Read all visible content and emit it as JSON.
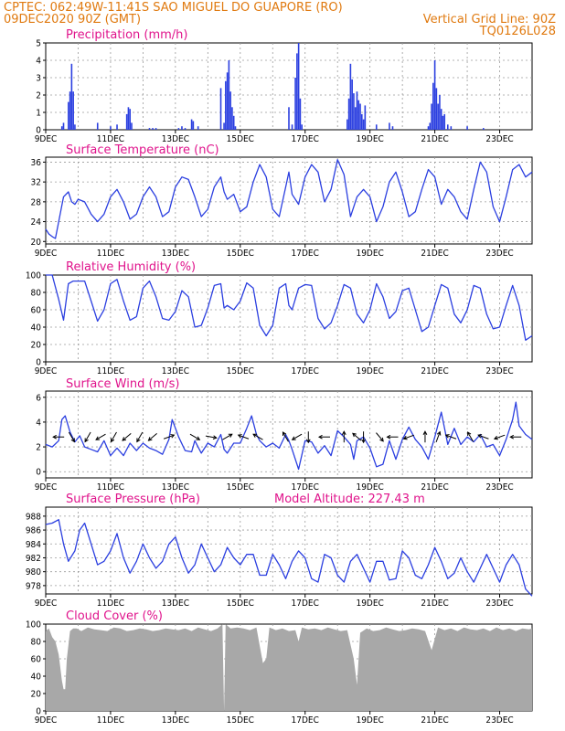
{
  "header": {
    "line1_left": "CPTEC:   062:49W-11:41S   SAO MIGUEL DO GUAPORE (RO)",
    "line2_left": "09DEC2020 90Z (GMT)",
    "line2_right": "Vertical Grid Line: 90Z",
    "line3_right": "TQ0126L028"
  },
  "colors": {
    "header": "#e07a10",
    "panel_title": "#e0148c",
    "series_line": "#2b3fe0",
    "precip_bar": "#2b3fe0",
    "cloud_fill": "#a8a8a8",
    "wind_arrow": "#000000",
    "grid": "#9a9a9a"
  },
  "chart_data": [
    {
      "id": "precip",
      "type": "bar",
      "title": "Precipitation (mm/h)",
      "xlabels": [
        "9DEC",
        "11DEC",
        "13DEC",
        "15DEC",
        "17DEC",
        "19DEC",
        "21DEC",
        "23DEC"
      ],
      "yticks": [
        "0",
        "1",
        "2",
        "3",
        "4",
        "5"
      ],
      "ylim": [
        0,
        5
      ],
      "xlim_days": [
        9,
        24
      ],
      "x_day": [
        9.5,
        9.55,
        9.7,
        9.75,
        9.8,
        9.85,
        9.9,
        10.6,
        11.0,
        11.2,
        11.5,
        11.55,
        11.6,
        11.65,
        12.2,
        12.3,
        12.4,
        13.1,
        13.2,
        13.3,
        13.5,
        13.55,
        13.7,
        14.4,
        14.5,
        14.55,
        14.6,
        14.65,
        14.7,
        14.75,
        14.8,
        14.85,
        16.5,
        16.6,
        16.7,
        16.75,
        16.8,
        16.85,
        16.9,
        18.3,
        18.35,
        18.4,
        18.45,
        18.5,
        18.55,
        18.6,
        18.65,
        18.7,
        18.75,
        18.8,
        18.85,
        19.2,
        19.6,
        19.7,
        20.8,
        20.85,
        20.9,
        20.95,
        21.0,
        21.05,
        21.1,
        21.15,
        21.2,
        21.25,
        21.3,
        21.4,
        21.5,
        22.0,
        22.5
      ],
      "values": [
        0.2,
        0.4,
        1.6,
        2.2,
        3.8,
        2.2,
        0.3,
        0.4,
        0.2,
        0.3,
        0.9,
        1.3,
        1.2,
        0.4,
        0.1,
        0.1,
        0.1,
        0.1,
        0.2,
        0.1,
        0.6,
        0.5,
        0.2,
        2.4,
        0.4,
        2.8,
        3.3,
        4.0,
        2.2,
        1.3,
        0.8,
        0.2,
        1.3,
        0.3,
        3.0,
        4.4,
        5.0,
        1.8,
        0.3,
        0.6,
        1.8,
        3.8,
        2.9,
        2.1,
        1.3,
        2.2,
        1.7,
        1.5,
        0.9,
        0.6,
        1.4,
        0.3,
        0.4,
        0.2,
        0.2,
        0.4,
        1.5,
        2.7,
        4.0,
        2.4,
        1.5,
        2.0,
        1.2,
        0.8,
        0.9,
        0.3,
        0.2,
        0.2,
        0.1
      ]
    },
    {
      "id": "temp",
      "type": "line",
      "title": "Surface Temperature (nC)",
      "xlabels": [
        "9DEC",
        "11DEC",
        "13DEC",
        "15DEC",
        "17DEC",
        "19DEC",
        "21DEC",
        "23DEC"
      ],
      "yticks": [
        "20",
        "24",
        "28",
        "32",
        "36"
      ],
      "ylim": [
        19.5,
        37
      ],
      "xlim_days": [
        9,
        24
      ],
      "x_day": [
        9.0,
        9.1,
        9.2,
        9.3,
        9.4,
        9.55,
        9.7,
        9.8,
        9.9,
        10.0,
        10.2,
        10.4,
        10.6,
        10.8,
        11.0,
        11.2,
        11.4,
        11.6,
        11.8,
        12.0,
        12.2,
        12.4,
        12.6,
        12.8,
        13.0,
        13.2,
        13.4,
        13.6,
        13.8,
        14.0,
        14.2,
        14.4,
        14.5,
        14.6,
        14.8,
        15.0,
        15.2,
        15.4,
        15.6,
        15.8,
        16.0,
        16.2,
        16.4,
        16.5,
        16.6,
        16.8,
        17.0,
        17.2,
        17.4,
        17.6,
        17.8,
        18.0,
        18.2,
        18.4,
        18.6,
        18.8,
        19.0,
        19.2,
        19.4,
        19.6,
        19.8,
        20.0,
        20.2,
        20.4,
        20.6,
        20.8,
        21.0,
        21.2,
        21.4,
        21.6,
        21.8,
        22.0,
        22.2,
        22.4,
        22.6,
        22.8,
        23.0,
        23.2,
        23.4,
        23.6,
        23.8,
        24.0
      ],
      "values": [
        22.5,
        21.5,
        21.0,
        20.6,
        24.0,
        29.0,
        30.0,
        28.0,
        27.5,
        28.5,
        28.0,
        25.5,
        24.0,
        25.5,
        29.0,
        30.5,
        28.0,
        24.5,
        25.5,
        29.0,
        31.0,
        29.0,
        25.0,
        26.0,
        31.0,
        33.0,
        32.5,
        29.0,
        25.0,
        26.5,
        31.0,
        33.0,
        30.0,
        28.5,
        29.5,
        26.0,
        27.0,
        32.0,
        35.5,
        33.0,
        26.5,
        25.0,
        31.0,
        34.0,
        29.5,
        27.5,
        33.0,
        35.5,
        34.0,
        28.0,
        30.5,
        36.5,
        33.5,
        25.0,
        29.0,
        30.5,
        29.0,
        24.0,
        27.0,
        32.0,
        34.0,
        30.0,
        25.0,
        26.0,
        30.5,
        34.5,
        33.0,
        27.5,
        30.5,
        29.0,
        26.0,
        24.5,
        30.5,
        36.0,
        34.0,
        27.0,
        24.0,
        29.0,
        34.5,
        35.5,
        33.0,
        34.0
      ]
    },
    {
      "id": "rh",
      "type": "line",
      "title": "Relative Humidity (%)",
      "xlabels": [
        "9DEC",
        "11DEC",
        "13DEC",
        "15DEC",
        "17DEC",
        "19DEC",
        "21DEC",
        "23DEC"
      ],
      "yticks": [
        "0",
        "20",
        "40",
        "60",
        "80",
        "100"
      ],
      "ylim": [
        0,
        100
      ],
      "xlim_days": [
        9,
        24
      ],
      "x_day": [
        9.0,
        9.2,
        9.4,
        9.55,
        9.7,
        9.85,
        10.0,
        10.2,
        10.4,
        10.6,
        10.8,
        11.0,
        11.2,
        11.4,
        11.6,
        11.8,
        12.0,
        12.2,
        12.4,
        12.6,
        12.8,
        13.0,
        13.2,
        13.4,
        13.6,
        13.8,
        14.0,
        14.2,
        14.4,
        14.5,
        14.6,
        14.8,
        15.0,
        15.2,
        15.4,
        15.6,
        15.8,
        16.0,
        16.2,
        16.4,
        16.5,
        16.6,
        16.8,
        17.0,
        17.2,
        17.4,
        17.6,
        17.8,
        18.0,
        18.2,
        18.4,
        18.6,
        18.8,
        19.0,
        19.2,
        19.4,
        19.6,
        19.8,
        20.0,
        20.2,
        20.4,
        20.6,
        20.8,
        21.0,
        21.2,
        21.4,
        21.6,
        21.8,
        22.0,
        22.2,
        22.4,
        22.6,
        22.8,
        23.0,
        23.2,
        23.4,
        23.6,
        23.8,
        24.0
      ],
      "values": [
        100,
        100,
        72,
        48,
        90,
        93,
        93,
        93,
        70,
        47,
        60,
        90,
        95,
        70,
        48,
        52,
        85,
        93,
        75,
        50,
        48,
        58,
        82,
        75,
        40,
        42,
        62,
        88,
        90,
        62,
        65,
        60,
        70,
        91,
        85,
        42,
        30,
        42,
        85,
        90,
        65,
        60,
        85,
        89,
        88,
        50,
        38,
        45,
        65,
        89,
        85,
        55,
        45,
        60,
        90,
        75,
        50,
        58,
        82,
        85,
        60,
        35,
        40,
        65,
        89,
        85,
        55,
        45,
        60,
        88,
        85,
        55,
        38,
        40,
        65,
        88,
        65,
        25,
        30
      ]
    },
    {
      "id": "wind",
      "type": "line",
      "title": "Surface Wind (m/s)",
      "xlabels": [
        "9DEC",
        "11DEC",
        "13DEC",
        "15DEC",
        "17DEC",
        "19DEC",
        "21DEC",
        "23DEC"
      ],
      "yticks": [
        "0",
        "2",
        "4",
        "6"
      ],
      "ylim": [
        -0.5,
        6.5
      ],
      "xlim_days": [
        9,
        24
      ],
      "x_day": [
        9.0,
        9.2,
        9.4,
        9.5,
        9.6,
        9.75,
        9.9,
        10.05,
        10.2,
        10.4,
        10.6,
        10.8,
        11.0,
        11.2,
        11.4,
        11.6,
        11.8,
        12.0,
        12.2,
        12.4,
        12.6,
        12.8,
        12.9,
        13.0,
        13.1,
        13.3,
        13.5,
        13.6,
        13.8,
        14.0,
        14.2,
        14.4,
        14.5,
        14.6,
        14.8,
        15.0,
        15.2,
        15.35,
        15.5,
        15.6,
        15.8,
        16.0,
        16.2,
        16.4,
        16.5,
        16.6,
        16.8,
        17.0,
        17.2,
        17.4,
        17.6,
        17.8,
        18.0,
        18.2,
        18.4,
        18.5,
        18.6,
        18.8,
        19.0,
        19.2,
        19.4,
        19.6,
        19.8,
        20.0,
        20.2,
        20.4,
        20.6,
        20.8,
        21.0,
        21.2,
        21.4,
        21.6,
        21.8,
        22.0,
        22.2,
        22.4,
        22.6,
        22.8,
        23.0,
        23.2,
        23.4,
        23.5,
        23.6,
        23.8,
        24.0
      ],
      "values": [
        2.2,
        2.0,
        2.5,
        4.2,
        4.5,
        3.2,
        2.4,
        2.9,
        2.0,
        1.8,
        1.6,
        2.5,
        1.3,
        1.9,
        1.3,
        2.3,
        1.7,
        2.3,
        1.9,
        1.7,
        1.4,
        2.6,
        4.2,
        3.5,
        2.8,
        1.7,
        1.6,
        2.5,
        1.5,
        2.3,
        2.0,
        3.0,
        1.8,
        1.5,
        2.3,
        2.3,
        3.5,
        4.5,
        3.0,
        2.5,
        2.0,
        2.3,
        1.9,
        3.0,
        2.5,
        1.8,
        0.2,
        2.5,
        2.4,
        1.5,
        2.1,
        1.3,
        3.3,
        2.8,
        2.2,
        1.0,
        2.5,
        2.8,
        1.9,
        0.4,
        0.6,
        2.5,
        1.0,
        2.6,
        3.6,
        2.6,
        2.0,
        1.0,
        2.8,
        4.8,
        2.2,
        3.5,
        2.2,
        2.8,
        2.4,
        3.0,
        2.0,
        2.2,
        1.3,
        2.6,
        4.2,
        5.6,
        3.7,
        3.0,
        2.6
      ],
      "arrows": [
        {
          "day": 9.4,
          "dir_deg": 180
        },
        {
          "day": 9.8,
          "dir_deg": 300
        },
        {
          "day": 10.3,
          "dir_deg": 240
        },
        {
          "day": 10.7,
          "dir_deg": 210
        },
        {
          "day": 11.1,
          "dir_deg": 240
        },
        {
          "day": 11.5,
          "dir_deg": 220
        },
        {
          "day": 11.9,
          "dir_deg": 240
        },
        {
          "day": 12.3,
          "dir_deg": 220
        },
        {
          "day": 12.8,
          "dir_deg": 20
        },
        {
          "day": 13.6,
          "dir_deg": 330
        },
        {
          "day": 14.1,
          "dir_deg": 350
        },
        {
          "day": 14.6,
          "dir_deg": 30
        },
        {
          "day": 15.1,
          "dir_deg": 160
        },
        {
          "day": 15.55,
          "dir_deg": 150
        },
        {
          "day": 16.4,
          "dir_deg": 120
        },
        {
          "day": 16.75,
          "dir_deg": 210
        },
        {
          "day": 17.1,
          "dir_deg": 270
        },
        {
          "day": 17.6,
          "dir_deg": 180
        },
        {
          "day": 18.2,
          "dir_deg": 90
        },
        {
          "day": 18.6,
          "dir_deg": 140
        },
        {
          "day": 18.8,
          "dir_deg": 270
        },
        {
          "day": 19.3,
          "dir_deg": 310
        },
        {
          "day": 19.7,
          "dir_deg": 180
        },
        {
          "day": 20.2,
          "dir_deg": 200
        },
        {
          "day": 20.7,
          "dir_deg": 90
        },
        {
          "day": 21.1,
          "dir_deg": 70
        },
        {
          "day": 21.5,
          "dir_deg": 160
        },
        {
          "day": 22.1,
          "dir_deg": 120
        },
        {
          "day": 22.5,
          "dir_deg": 160
        },
        {
          "day": 23.0,
          "dir_deg": 200
        },
        {
          "day": 23.5,
          "dir_deg": 180
        }
      ]
    },
    {
      "id": "pressure",
      "type": "line",
      "title": "Surface Pressure (hPa)",
      "title2": "Model Altitude: 227.43 m",
      "xlabels": [
        "9DEC",
        "11DEC",
        "13DEC",
        "15DEC",
        "17DEC",
        "19DEC",
        "21DEC",
        "23DEC"
      ],
      "yticks": [
        "978",
        "980",
        "982",
        "984",
        "986",
        "988"
      ],
      "ylim": [
        976.8,
        989.3
      ],
      "xlim_days": [
        9,
        24
      ],
      "x_day": [
        9.0,
        9.2,
        9.4,
        9.55,
        9.7,
        9.9,
        10.05,
        10.2,
        10.4,
        10.6,
        10.8,
        11.0,
        11.2,
        11.4,
        11.6,
        11.8,
        12.0,
        12.2,
        12.4,
        12.6,
        12.8,
        13.0,
        13.2,
        13.4,
        13.6,
        13.8,
        14.0,
        14.2,
        14.4,
        14.6,
        14.8,
        15.0,
        15.2,
        15.4,
        15.6,
        15.8,
        16.0,
        16.2,
        16.4,
        16.6,
        16.8,
        17.0,
        17.2,
        17.4,
        17.6,
        17.8,
        18.0,
        18.2,
        18.4,
        18.6,
        18.8,
        19.0,
        19.2,
        19.4,
        19.6,
        19.8,
        20.0,
        20.2,
        20.4,
        20.6,
        20.8,
        21.0,
        21.2,
        21.4,
        21.6,
        21.8,
        22.0,
        22.2,
        22.4,
        22.6,
        22.8,
        23.0,
        23.2,
        23.4,
        23.6,
        23.8,
        24.0
      ],
      "values": [
        986.8,
        987.0,
        987.5,
        984.0,
        981.5,
        983.0,
        986.0,
        987.0,
        984.0,
        981.0,
        981.5,
        983.0,
        985.5,
        982.0,
        979.8,
        981.5,
        984.0,
        982.0,
        980.5,
        981.5,
        984.0,
        985.0,
        982.0,
        979.8,
        981.0,
        984.0,
        982.0,
        980.0,
        981.0,
        983.5,
        982.0,
        981.0,
        982.5,
        982.5,
        979.5,
        979.5,
        982.5,
        981.0,
        979.0,
        981.5,
        983.0,
        982.0,
        979.0,
        978.5,
        982.5,
        982.0,
        979.5,
        978.5,
        981.5,
        982.5,
        980.5,
        978.5,
        981.5,
        981.5,
        978.8,
        979.0,
        983.0,
        982.0,
        979.5,
        979.0,
        981.0,
        983.5,
        981.5,
        979.0,
        979.8,
        982.0,
        980.0,
        978.5,
        980.5,
        982.5,
        980.5,
        978.5,
        981.0,
        982.5,
        981.0,
        977.5,
        976.5
      ]
    },
    {
      "id": "cloud",
      "type": "area",
      "title": "Cloud Cover (%)",
      "xlabels": [
        "9DEC",
        "11DEC",
        "13DEC",
        "15DEC",
        "17DEC",
        "19DEC",
        "21DEC",
        "23DEC"
      ],
      "yticks": [
        "0",
        "20",
        "40",
        "60",
        "80",
        "100"
      ],
      "ylim": [
        0,
        100
      ],
      "xlim_days": [
        9,
        24
      ],
      "x_day": [
        9.0,
        9.1,
        9.2,
        9.3,
        9.4,
        9.5,
        9.55,
        9.6,
        9.65,
        9.75,
        9.85,
        9.95,
        10.1,
        10.3,
        10.5,
        10.7,
        10.9,
        11.1,
        11.3,
        11.5,
        11.7,
        11.9,
        12.1,
        12.3,
        12.5,
        12.7,
        12.9,
        13.1,
        13.3,
        13.5,
        13.7,
        13.9,
        14.1,
        14.3,
        14.45,
        14.5,
        14.55,
        14.7,
        14.9,
        15.1,
        15.3,
        15.5,
        15.6,
        15.7,
        15.8,
        15.9,
        16.1,
        16.3,
        16.5,
        16.7,
        16.8,
        16.9,
        17.1,
        17.3,
        17.5,
        17.7,
        17.9,
        18.1,
        18.3,
        18.5,
        18.6,
        18.7,
        18.9,
        19.1,
        19.3,
        19.5,
        19.7,
        19.9,
        20.1,
        20.3,
        20.5,
        20.7,
        20.9,
        21.1,
        21.3,
        21.5,
        21.7,
        21.9,
        22.1,
        22.3,
        22.5,
        22.7,
        22.9,
        23.1,
        23.3,
        23.5,
        23.7,
        23.9,
        24.0
      ],
      "values": [
        92,
        95,
        85,
        80,
        65,
        35,
        25,
        25,
        60,
        92,
        95,
        95,
        92,
        96,
        94,
        93,
        92,
        96,
        95,
        92,
        93,
        95,
        94,
        92,
        93,
        95,
        94,
        93,
        95,
        92,
        96,
        94,
        92,
        95,
        100,
        0,
        100,
        95,
        96,
        95,
        93,
        96,
        75,
        55,
        60,
        96,
        93,
        95,
        92,
        93,
        80,
        96,
        94,
        95,
        93,
        96,
        94,
        92,
        93,
        60,
        30,
        90,
        95,
        92,
        93,
        96,
        94,
        92,
        93,
        95,
        94,
        92,
        70,
        96,
        93,
        95,
        92,
        96,
        94,
        93,
        95,
        92,
        96,
        93,
        95,
        92,
        95,
        94,
        95
      ]
    }
  ]
}
